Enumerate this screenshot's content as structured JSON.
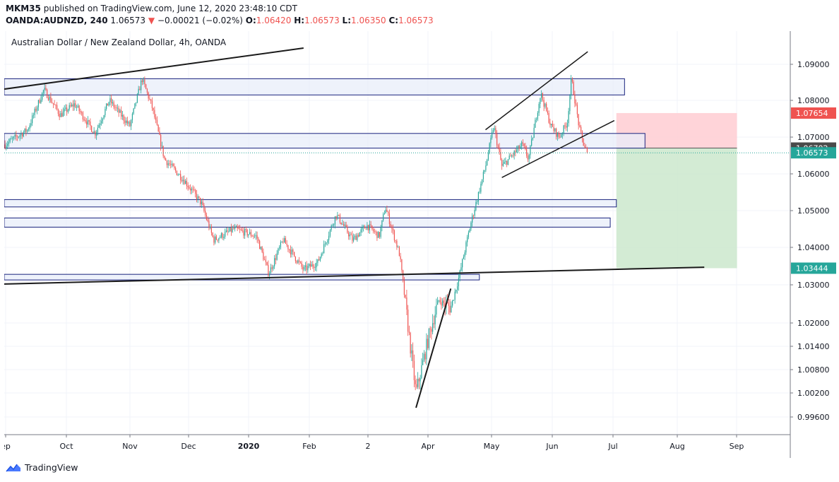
{
  "header": {
    "author": "MKM35",
    "published_text": "published on TradingView.com, June 12, 2020 23:48:10 CDT",
    "symbol": "OANDA:AUDNZD, 240",
    "price": "1.06573",
    "change_arrow": "▼",
    "change": "−0.00021 (−0.02%)",
    "o_label": "O:",
    "o_value": "1.06420",
    "h_label": "H:",
    "h_value": "1.06573",
    "l_label": "L:",
    "l_value": "1.06350",
    "c_label": "C:",
    "c_value": "1.06573"
  },
  "footer": {
    "brand": "TradingView"
  },
  "colors": {
    "up": "#26a69a",
    "down": "#ef5350",
    "zone_border": "#1a237e",
    "zone_fill": "#e8edf9",
    "stop_zone": "#ffcdd2",
    "target_zone": "#c8e6c9",
    "current_price_bg": "#26a69a",
    "entry_price_bg": "#4a4a4a"
  },
  "chart_data": {
    "type": "candlestick",
    "title": "Australian Dollar / New Zealand Dollar, 4h, OANDA",
    "x_ticks": [
      "ep",
      "Oct",
      "Nov",
      "Dec",
      "2020",
      "Feb",
      "2",
      "Apr",
      "May",
      "Jun",
      "Jul",
      "Aug",
      "Sep"
    ],
    "y_ticks": [
      "1.09000",
      "1.08000",
      "1.07000",
      "1.06000",
      "1.05000",
      "1.04000",
      "1.03000",
      "1.02000",
      "1.01400",
      "1.00800",
      "1.00200",
      "0.99600"
    ],
    "price_labels": [
      {
        "name": "stop-loss",
        "value": "1.07654",
        "color": "#ef5350"
      },
      {
        "name": "entry",
        "value": "1.06702",
        "color": "#4a4a4a"
      },
      {
        "name": "last-price",
        "value": "1.06573",
        "color": "#26a69a"
      },
      {
        "name": "take-profit",
        "value": "1.03444",
        "color": "#26a69a"
      }
    ],
    "path": [
      [
        "2019-09-01",
        1.068
      ],
      [
        "2019-09-12",
        1.072
      ],
      [
        "2019-09-20",
        1.083
      ],
      [
        "2019-09-28",
        1.076
      ],
      [
        "2019-10-05",
        1.079
      ],
      [
        "2019-10-15",
        1.071
      ],
      [
        "2019-10-22",
        1.08
      ],
      [
        "2019-11-01",
        1.073
      ],
      [
        "2019-11-07",
        1.086
      ],
      [
        "2019-11-12",
        1.078
      ],
      [
        "2019-11-18",
        1.064
      ],
      [
        "2019-11-28",
        1.058
      ],
      [
        "2019-12-06",
        1.052
      ],
      [
        "2019-12-12",
        1.042
      ],
      [
        "2019-12-22",
        1.045
      ],
      [
        "2020-01-02",
        1.043
      ],
      [
        "2020-01-08",
        1.033
      ],
      [
        "2020-01-15",
        1.042
      ],
      [
        "2020-01-25",
        1.034
      ],
      [
        "2020-02-01",
        1.036
      ],
      [
        "2020-02-10",
        1.049
      ],
      [
        "2020-02-18",
        1.042
      ],
      [
        "2020-02-25",
        1.046
      ],
      [
        "2020-03-02",
        1.043
      ],
      [
        "2020-03-05",
        1.051
      ],
      [
        "2020-03-12",
        1.038
      ],
      [
        "2020-03-17",
        1.015
      ],
      [
        "2020-03-20",
        1.002
      ],
      [
        "2020-03-23",
        1.009
      ],
      [
        "2020-03-26",
        1.016
      ],
      [
        "2020-03-31",
        1.026
      ],
      [
        "2020-04-06",
        1.024
      ],
      [
        "2020-04-10",
        1.032
      ],
      [
        "2020-04-16",
        1.047
      ],
      [
        "2020-04-23",
        1.062
      ],
      [
        "2020-04-27",
        1.073
      ],
      [
        "2020-05-01",
        1.062
      ],
      [
        "2020-05-06",
        1.065
      ],
      [
        "2020-05-11",
        1.068
      ],
      [
        "2020-05-14",
        1.064
      ],
      [
        "2020-05-20",
        1.082
      ],
      [
        "2020-05-25",
        1.073
      ],
      [
        "2020-05-29",
        1.07
      ],
      [
        "2020-06-02",
        1.074
      ],
      [
        "2020-06-04",
        1.086
      ],
      [
        "2020-06-08",
        1.072
      ],
      [
        "2020-06-10",
        1.068
      ],
      [
        "2020-06-12",
        1.0657
      ]
    ],
    "zones": [
      {
        "name": "resistance-zone-top",
        "x_start": "2019-08-30",
        "x_end": "2020-06-30",
        "y_low": 1.0815,
        "y_high": 1.086
      },
      {
        "name": "resistance-zone-mid",
        "x_start": "2019-08-30",
        "x_end": "2020-07-10",
        "y_low": 1.067,
        "y_high": 1.071
      },
      {
        "name": "support-zone-1",
        "x_start": "2019-08-30",
        "x_end": "2020-06-26",
        "y_low": 1.051,
        "y_high": 1.053
      },
      {
        "name": "support-zone-2",
        "x_start": "2019-08-30",
        "x_end": "2020-06-23",
        "y_low": 1.0455,
        "y_high": 1.048
      },
      {
        "name": "support-zone-low",
        "x_start": "2019-08-30",
        "x_end": "2020-04-20",
        "y_low": 1.0313,
        "y_high": 1.0328
      }
    ],
    "trendlines": [
      {
        "name": "upper-trendline",
        "from": [
          "2019-08-30",
          1.083
        ],
        "to": [
          "2020-01-25",
          1.0945
        ]
      },
      {
        "name": "lower-support-trendline",
        "from": [
          "2019-08-30",
          1.0302
        ],
        "to": [
          "2020-08-08",
          1.0347
        ]
      },
      {
        "name": "recovery-trendline",
        "from": [
          "2020-03-20",
          0.9983
        ],
        "to": [
          "2020-04-06",
          1.029
        ]
      },
      {
        "name": "channel-top",
        "from": [
          "2020-04-23",
          1.072
        ],
        "to": [
          "2020-06-12",
          1.0935
        ]
      },
      {
        "name": "channel-bottom",
        "from": [
          "2020-05-01",
          1.059
        ],
        "to": [
          "2020-06-25",
          1.0745
        ]
      }
    ],
    "position": {
      "x_start": "2020-06-26",
      "x_end": "2020-08-24",
      "entry": 1.06702,
      "stop": 1.07654,
      "target": 1.03444
    }
  }
}
